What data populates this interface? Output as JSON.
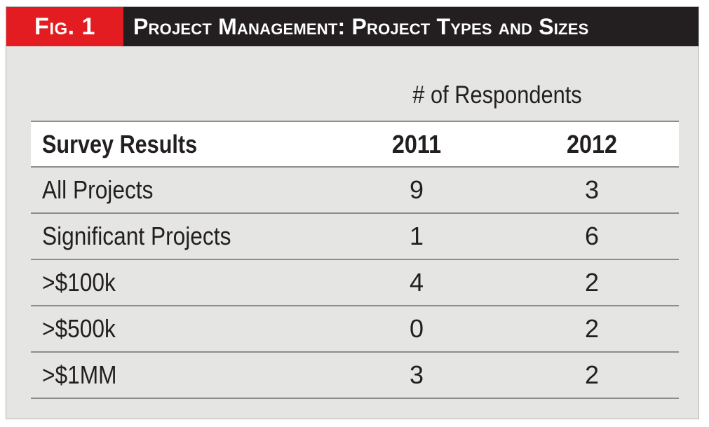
{
  "header": {
    "fig_label": "Fig. 1",
    "title": "Project Management: Project Types and Sizes",
    "colors": {
      "label_bg": "#e21c21",
      "title_bg": "#231f20",
      "panel_bg": "#e5e5e3"
    }
  },
  "table": {
    "group_header": "# of Respondents",
    "columns": [
      "Survey Results",
      "2011",
      "2012"
    ],
    "rows": [
      {
        "label": "All Projects",
        "y2011": "9",
        "y2012": "3"
      },
      {
        "label": "Significant Projects",
        "y2011": "1",
        "y2012": "6"
      },
      {
        "label": ">$100k",
        "y2011": "4",
        "y2012": "2"
      },
      {
        "label": ">$500k",
        "y2011": "0",
        "y2012": "2"
      },
      {
        "label": ">$1MM",
        "y2011": "3",
        "y2012": "2"
      }
    ]
  }
}
